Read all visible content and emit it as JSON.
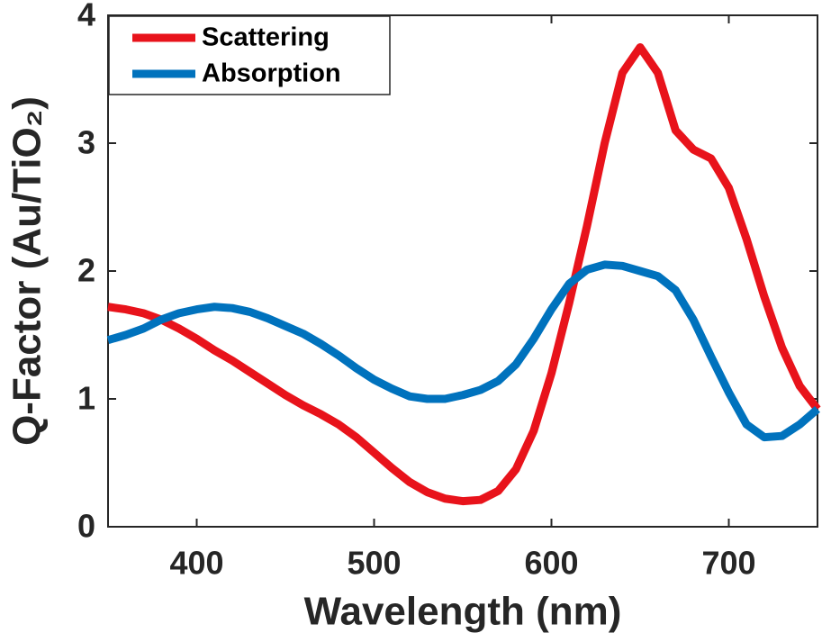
{
  "chart_data": {
    "type": "line",
    "xlabel": "Wavelength (nm)",
    "ylabel": "Q-Factor (Au/TiO₂)",
    "x": [
      350,
      360,
      370,
      380,
      390,
      400,
      410,
      420,
      430,
      440,
      450,
      460,
      470,
      480,
      490,
      500,
      510,
      520,
      530,
      540,
      550,
      560,
      570,
      580,
      590,
      600,
      610,
      620,
      630,
      640,
      650,
      660,
      670,
      680,
      690,
      700,
      710,
      720,
      730,
      740,
      750
    ],
    "series": [
      {
        "name": "Scattering",
        "color": "#e8131b",
        "values": [
          1.72,
          1.7,
          1.67,
          1.62,
          1.55,
          1.47,
          1.38,
          1.3,
          1.21,
          1.12,
          1.03,
          0.95,
          0.88,
          0.8,
          0.7,
          0.58,
          0.46,
          0.35,
          0.27,
          0.22,
          0.2,
          0.21,
          0.28,
          0.45,
          0.75,
          1.2,
          1.75,
          2.35,
          3.0,
          3.55,
          3.75,
          3.55,
          3.1,
          2.95,
          2.88,
          2.65,
          2.25,
          1.8,
          1.4,
          1.1,
          0.92
        ]
      },
      {
        "name": "Absorption",
        "color": "#0072bd",
        "values": [
          1.46,
          1.5,
          1.55,
          1.62,
          1.67,
          1.7,
          1.72,
          1.71,
          1.68,
          1.63,
          1.57,
          1.51,
          1.43,
          1.34,
          1.24,
          1.15,
          1.08,
          1.02,
          1.0,
          1.0,
          1.03,
          1.07,
          1.14,
          1.27,
          1.47,
          1.7,
          1.9,
          2.01,
          2.05,
          2.04,
          2.0,
          1.96,
          1.85,
          1.62,
          1.33,
          1.05,
          0.8,
          0.7,
          0.71,
          0.8,
          0.92
        ]
      }
    ],
    "xlim": [
      350,
      750
    ],
    "xticks": [
      400,
      500,
      600,
      700
    ],
    "ylim": [
      0,
      4
    ],
    "yticks": [
      0,
      1,
      2,
      3,
      4
    ],
    "legend": "upper-left"
  }
}
